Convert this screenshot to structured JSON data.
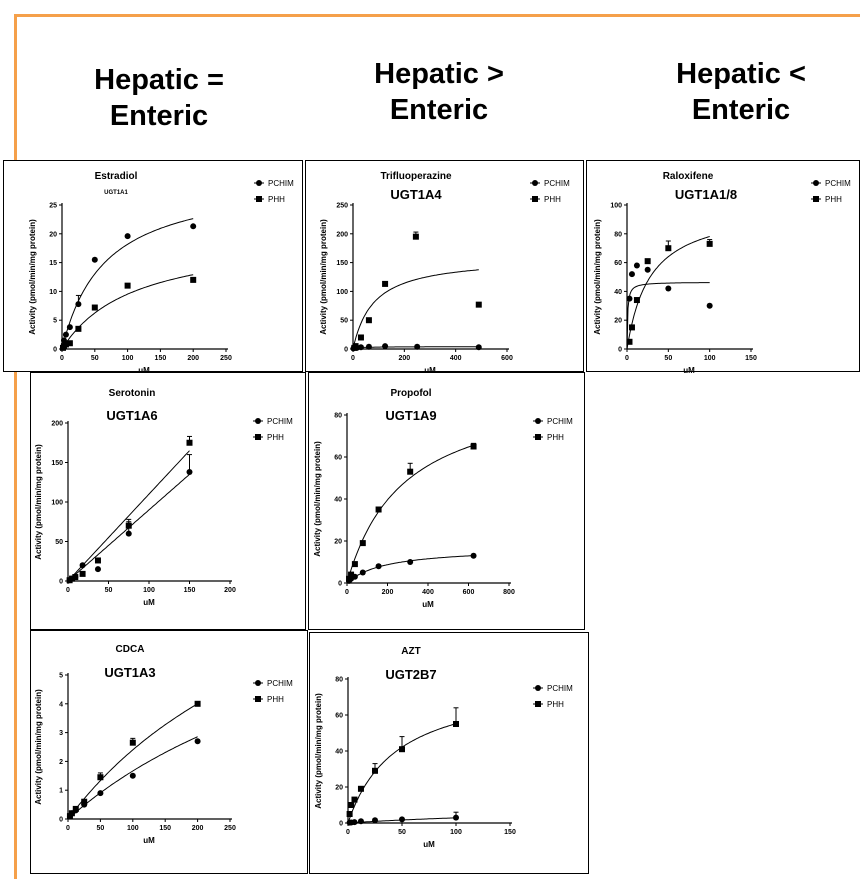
{
  "headings": [
    {
      "line1": "Hepatic =",
      "line2": "Enteric"
    },
    {
      "line1": "Hepatic >",
      "line2": "Enteric"
    },
    {
      "line1": "Hepatic <",
      "line2": "Enteric"
    }
  ],
  "colors": {
    "frame": "#f5a04a",
    "ink": "#000000",
    "panel_border": "#000000"
  },
  "chart_data": [
    {
      "type": "scatter",
      "title": "Estradiol",
      "subtitle": "UGT1A1",
      "xlabel": "uM",
      "ylabel": "Activity (pmol/min/mg protein)",
      "xlim": [
        0,
        250
      ],
      "ylim": [
        0,
        25
      ],
      "xticks": [
        0,
        50,
        100,
        150,
        200,
        250
      ],
      "yticks": [
        0,
        5,
        10,
        15,
        20,
        25
      ],
      "legend": [
        "PCHIM",
        "PHH"
      ],
      "legend_position": "right",
      "series": [
        {
          "name": "PCHIM",
          "marker": "circle",
          "x": [
            1.5,
            3,
            6,
            12,
            25,
            50,
            100,
            200
          ],
          "y": [
            0.3,
            1.5,
            2.5,
            3.8,
            7.8,
            15.5,
            19.6,
            21.3
          ],
          "err": [
            0,
            0,
            0,
            0,
            1.5,
            0,
            0,
            0
          ],
          "fit": {
            "model": "mm",
            "vmax": 30,
            "km": 65
          }
        },
        {
          "name": "PHH",
          "marker": "square",
          "x": [
            1.5,
            3,
            6,
            12,
            25,
            50,
            100,
            200
          ],
          "y": [
            0.2,
            0.5,
            0.8,
            1.0,
            3.5,
            7.2,
            11.0,
            12.0
          ],
          "err": [
            0,
            0,
            0,
            0,
            0,
            0,
            0,
            0
          ],
          "fit": {
            "model": "mm",
            "vmax": 20,
            "km": 110
          }
        }
      ]
    },
    {
      "type": "scatter",
      "title": "Trifluoperazine",
      "subtitle": "UGT1A4",
      "xlabel": "uM",
      "ylabel": "Activity (pmol/min/mg protein)",
      "xlim": [
        0,
        600
      ],
      "ylim": [
        0,
        250
      ],
      "xticks": [
        0,
        200,
        400,
        600
      ],
      "yticks": [
        0,
        50,
        100,
        150,
        200,
        250
      ],
      "legend": [
        "PCHIM",
        "PHH"
      ],
      "legend_position": "right",
      "series": [
        {
          "name": "PCHIM",
          "marker": "circle",
          "x": [
            2,
            4,
            8,
            15,
            31,
            62,
            125,
            250,
            490
          ],
          "y": [
            1,
            2,
            3,
            2,
            3,
            4,
            5,
            4,
            3
          ],
          "err": [
            0,
            0,
            0,
            0,
            0,
            0,
            0,
            0,
            0
          ],
          "fit": {
            "model": "mm",
            "vmax": 4,
            "km": 20
          }
        },
        {
          "name": "PHH",
          "marker": "square",
          "x": [
            5,
            10,
            31,
            62,
            125,
            245,
            490
          ],
          "y": [
            2,
            5,
            20,
            50,
            113,
            195,
            77
          ],
          "err": [
            0,
            0,
            0,
            0,
            0,
            8,
            0
          ],
          "fit": {
            "model": "mm",
            "vmax": 160,
            "km": 80
          }
        }
      ]
    },
    {
      "type": "scatter",
      "title": "Raloxifene",
      "subtitle": "UGT1A1/8",
      "xlabel": "uM",
      "ylabel": "Activity (pmol/min/mg protein)",
      "xlim": [
        0,
        150
      ],
      "ylim": [
        0,
        100
      ],
      "xticks": [
        0,
        50,
        100,
        150
      ],
      "yticks": [
        0,
        20,
        40,
        60,
        80,
        100
      ],
      "legend": [
        "PCHIM",
        "PHH"
      ],
      "legend_position": "right",
      "series": [
        {
          "name": "PCHIM",
          "marker": "circle",
          "x": [
            3,
            6,
            12,
            25,
            50,
            100
          ],
          "y": [
            35,
            52,
            58,
            55,
            42,
            30
          ],
          "err": [
            0,
            0,
            0,
            0,
            0,
            0
          ],
          "fit": {
            "model": "mm",
            "vmax": 46.5,
            "km": 0.8
          }
        },
        {
          "name": "PHH",
          "marker": "square",
          "x": [
            3,
            6,
            12,
            25,
            50,
            100
          ],
          "y": [
            5,
            15,
            34,
            61,
            70,
            73
          ],
          "err": [
            0,
            0,
            0,
            0,
            5,
            3
          ],
          "fit": {
            "model": "mm",
            "vmax": 100,
            "km": 28
          }
        }
      ]
    },
    {
      "type": "scatter",
      "title": "Serotonin",
      "subtitle": "UGT1A6",
      "xlabel": "uM",
      "ylabel": "Activity (pmol/min/mg protein)",
      "xlim": [
        0,
        200
      ],
      "ylim": [
        0,
        200
      ],
      "xticks": [
        0,
        50,
        100,
        150,
        200
      ],
      "yticks": [
        0,
        50,
        100,
        150,
        200
      ],
      "legend": [
        "PCHIM",
        "PHH"
      ],
      "legend_position": "right",
      "series": [
        {
          "name": "PCHIM",
          "marker": "circle",
          "x": [
            2,
            5,
            9,
            18,
            37,
            75,
            150
          ],
          "y": [
            1,
            3,
            5,
            20,
            15,
            60,
            138
          ],
          "err": [
            0,
            0,
            0,
            0,
            0,
            15,
            22
          ],
          "fit": {
            "model": "linear",
            "slope": 0.9,
            "intercept": 0
          }
        },
        {
          "name": "PHH",
          "marker": "square",
          "x": [
            2,
            5,
            9,
            18,
            37,
            75,
            150
          ],
          "y": [
            1,
            3,
            5,
            9,
            26,
            70,
            175
          ],
          "err": [
            0,
            0,
            0,
            0,
            0,
            8,
            8
          ],
          "fit": {
            "model": "linear",
            "slope": 1.1,
            "intercept": 0
          }
        }
      ]
    },
    {
      "type": "scatter",
      "title": "Propofol",
      "subtitle": "UGT1A9",
      "xlabel": "uM",
      "ylabel": "Activity (pmol/min/mg protein)",
      "xlim": [
        0,
        800
      ],
      "ylim": [
        0,
        80
      ],
      "xticks": [
        0,
        200,
        400,
        600,
        800
      ],
      "yticks": [
        0,
        20,
        40,
        60,
        80
      ],
      "legend": [
        "PCHIM",
        "PHH"
      ],
      "legend_position": "right",
      "series": [
        {
          "name": "PCHIM",
          "marker": "circle",
          "x": [
            10,
            20,
            39,
            78,
            156,
            312,
            625
          ],
          "y": [
            1,
            2,
            3,
            5,
            8,
            10,
            13
          ],
          "err": [
            0,
            0,
            0,
            0,
            0,
            0,
            0
          ],
          "fit": {
            "model": "mm",
            "vmax": 17,
            "km": 190
          }
        },
        {
          "name": "PHH",
          "marker": "square",
          "x": [
            10,
            20,
            39,
            78,
            156,
            312,
            625
          ],
          "y": [
            2,
            4,
            9,
            19,
            35,
            53,
            65
          ],
          "err": [
            0,
            0,
            0,
            0,
            0,
            4,
            1.5
          ],
          "fit": {
            "model": "mm",
            "vmax": 95,
            "km": 280
          }
        }
      ]
    },
    {
      "type": "scatter",
      "title": "CDCA",
      "subtitle": "UGT1A3",
      "xlabel": "uM",
      "ylabel": "Activity (pmol/min/mg protein)",
      "xlim": [
        0,
        250
      ],
      "ylim": [
        0,
        5
      ],
      "xticks": [
        0,
        50,
        100,
        150,
        200,
        250
      ],
      "yticks": [
        0,
        1,
        2,
        3,
        4,
        5
      ],
      "legend": [
        "PCHIM",
        "PHH"
      ],
      "legend_position": "right",
      "series": [
        {
          "name": "PCHIM",
          "marker": "circle",
          "x": [
            3,
            6,
            12,
            25,
            50,
            100,
            200
          ],
          "y": [
            0.1,
            0.2,
            0.3,
            0.5,
            0.9,
            1.5,
            2.7
          ],
          "err": [
            0,
            0,
            0,
            0,
            0,
            0,
            0
          ],
          "fit": {
            "model": "mm",
            "vmax": 10,
            "km": 500
          }
        },
        {
          "name": "PHH",
          "marker": "square",
          "x": [
            3,
            6,
            12,
            25,
            50,
            100,
            200
          ],
          "y": [
            0.1,
            0.2,
            0.35,
            0.6,
            1.45,
            2.65,
            4.0
          ],
          "err": [
            0,
            0,
            0,
            0,
            0.15,
            0.15,
            0
          ],
          "fit": {
            "model": "mm",
            "vmax": 12,
            "km": 400
          }
        }
      ]
    },
    {
      "type": "scatter",
      "title": "AZT",
      "subtitle": "UGT2B7",
      "xlabel": "uM",
      "ylabel": "Activity (pmol/min/mg protein)",
      "xlim": [
        0,
        150
      ],
      "ylim": [
        0,
        80
      ],
      "xticks": [
        0,
        50,
        100,
        150
      ],
      "yticks": [
        0,
        20,
        40,
        60,
        80
      ],
      "legend": [
        "PCHIM",
        "PHH"
      ],
      "legend_position": "right",
      "series": [
        {
          "name": "PCHIM",
          "marker": "circle",
          "x": [
            1.5,
            3,
            6,
            12,
            25,
            50,
            100
          ],
          "y": [
            0.2,
            0.3,
            0.5,
            1,
            1.5,
            2,
            3
          ],
          "err": [
            0,
            0,
            0,
            0,
            0,
            0,
            3
          ],
          "fit": {
            "model": "mm",
            "vmax": 10,
            "km": 250
          }
        },
        {
          "name": "PHH",
          "marker": "square",
          "x": [
            1.5,
            3,
            6,
            12,
            25,
            50,
            100
          ],
          "y": [
            5,
            10,
            13,
            19,
            29,
            41,
            55
          ],
          "err": [
            0,
            0,
            0,
            0,
            4,
            7,
            9
          ],
          "fit": {
            "model": "mm",
            "vmax": 80,
            "km": 45
          }
        }
      ]
    }
  ]
}
